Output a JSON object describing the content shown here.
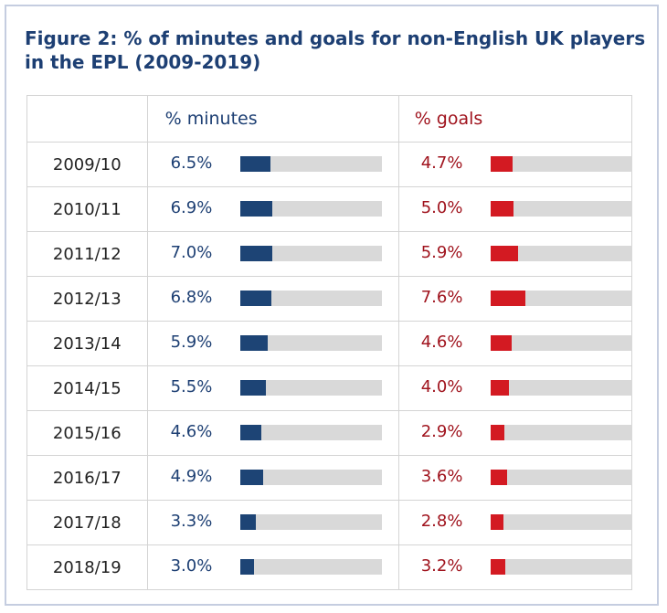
{
  "chart_data": {
    "type": "table",
    "title": "Figure 2: % of minutes and goals for non-English UK players in the EPL (2009-2019)",
    "columns": [
      "",
      "% minutes",
      "% goals"
    ],
    "bar_max_percent": 31,
    "colors": {
      "minutes": "#1d4475",
      "goals": "#d31a22",
      "track": "#d9d9d9",
      "title": "#1d3f73"
    },
    "rows": [
      {
        "season": "2009/10",
        "minutes": 6.5,
        "minutes_label": "6.5%",
        "goals": 4.7,
        "goals_label": "4.7%"
      },
      {
        "season": "2010/11",
        "minutes": 6.9,
        "minutes_label": "6.9%",
        "goals": 5.0,
        "goals_label": "5.0%"
      },
      {
        "season": "2011/12",
        "minutes": 7.0,
        "minutes_label": "7.0%",
        "goals": 5.9,
        "goals_label": "5.9%"
      },
      {
        "season": "2012/13",
        "minutes": 6.8,
        "minutes_label": "6.8%",
        "goals": 7.6,
        "goals_label": "7.6%"
      },
      {
        "season": "2013/14",
        "minutes": 5.9,
        "minutes_label": "5.9%",
        "goals": 4.6,
        "goals_label": "4.6%"
      },
      {
        "season": "2014/15",
        "minutes": 5.5,
        "minutes_label": "5.5%",
        "goals": 4.0,
        "goals_label": "4.0%"
      },
      {
        "season": "2015/16",
        "minutes": 4.6,
        "minutes_label": "4.6%",
        "goals": 2.9,
        "goals_label": "2.9%"
      },
      {
        "season": "2016/17",
        "minutes": 4.9,
        "minutes_label": "4.9%",
        "goals": 3.6,
        "goals_label": "3.6%"
      },
      {
        "season": "2017/18",
        "minutes": 3.3,
        "minutes_label": "3.3%",
        "goals": 2.8,
        "goals_label": "2.8%"
      },
      {
        "season": "2018/19",
        "minutes": 3.0,
        "minutes_label": "3.0%",
        "goals": 3.2,
        "goals_label": "3.2%"
      }
    ]
  }
}
